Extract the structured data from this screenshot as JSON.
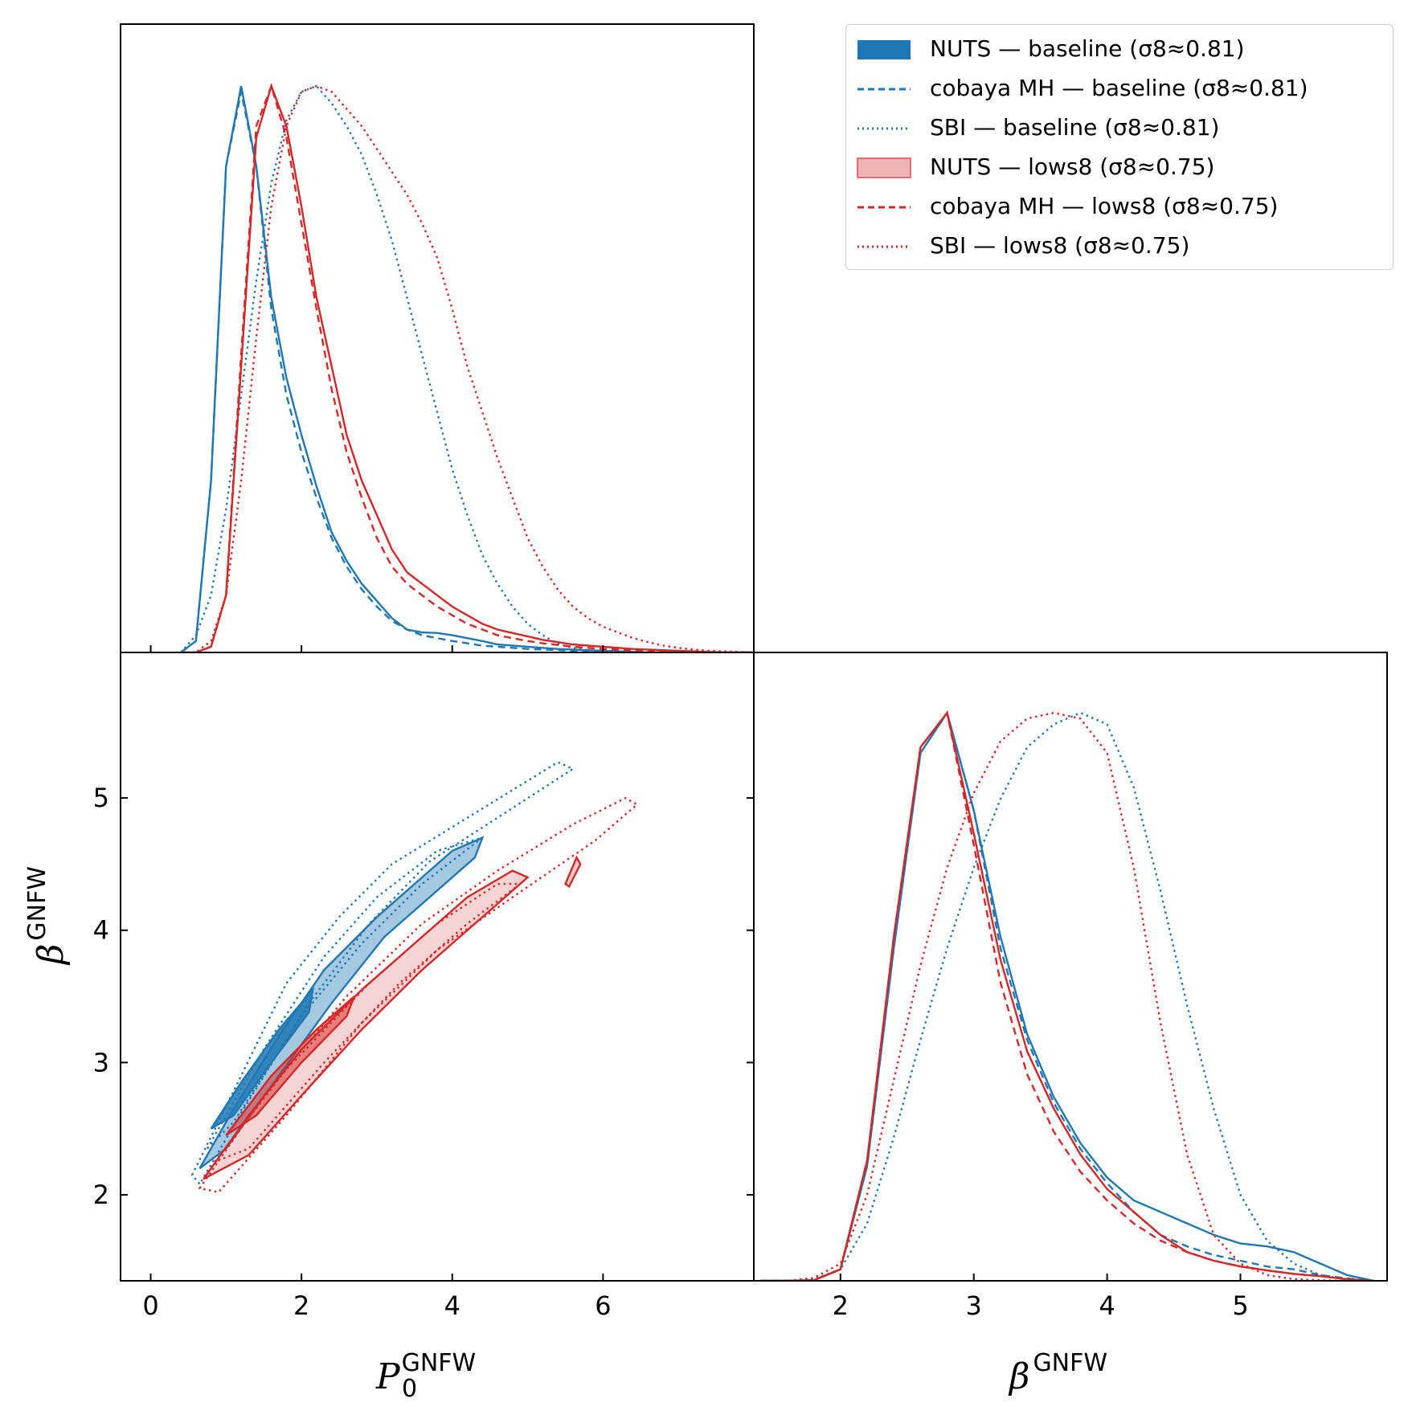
{
  "colors": {
    "baseline": "#1f77b4",
    "lows8": "#d62728"
  },
  "legend": {
    "placement": "top-right",
    "entries": [
      {
        "label": "NUTS — baseline (σ8≈0.81)",
        "color": "#1f77b4",
        "style": "filled"
      },
      {
        "label": "cobaya MH — baseline (σ8≈0.81)",
        "color": "#1f77b4",
        "style": "dashed"
      },
      {
        "label": "SBI — baseline (σ8≈0.81)",
        "color": "#1f77b4",
        "style": "dotted"
      },
      {
        "label": "NUTS — lows8 (σ8≈0.75)",
        "color": "#d62728",
        "style": "filled"
      },
      {
        "label": "cobaya MH — lows8 (σ8≈0.75)",
        "color": "#d62728",
        "style": "dashed"
      },
      {
        "label": "SBI — lows8 (σ8≈0.75)",
        "color": "#d62728",
        "style": "dotted"
      }
    ]
  },
  "chart_data": {
    "type": "corner",
    "parameters": [
      "P0",
      "beta"
    ],
    "xlabel_p0": {
      "base": "P",
      "sub": "0",
      "sup": "GNFW"
    },
    "xlabel_beta": {
      "base": "β",
      "sup": "GNFW"
    },
    "ylabel_beta": {
      "base": "β",
      "sup": "GNFW"
    },
    "p0_range": [
      -0.4,
      8.0
    ],
    "beta_range": [
      1.35,
      6.1
    ],
    "p0_ticks": [
      "0",
      "2",
      "4",
      "6"
    ],
    "beta_ticks": [
      "2",
      "3",
      "4",
      "5"
    ],
    "p0_marginal": {
      "x": [
        0.4,
        0.6,
        0.8,
        1.0,
        1.2,
        1.4,
        1.6,
        1.8,
        2.0,
        2.2,
        2.4,
        2.6,
        2.8,
        3.0,
        3.2,
        3.4,
        3.6,
        3.8,
        4.0,
        4.2,
        4.4,
        4.6,
        4.8,
        5.0,
        5.2,
        5.4,
        5.6,
        5.8,
        6.0,
        6.2,
        6.4,
        6.6,
        6.8,
        7.0,
        7.2,
        7.4,
        7.6,
        7.8,
        8.0
      ],
      "series": [
        {
          "name": "NUTS — baseline (σ8≈0.81)",
          "color": "#1f77b4",
          "dash": "solid",
          "y": [
            0.0,
            0.02,
            0.3,
            0.85,
            0.99,
            0.85,
            0.62,
            0.48,
            0.38,
            0.29,
            0.21,
            0.16,
            0.12,
            0.09,
            0.06,
            0.04,
            0.035,
            0.034,
            0.03,
            0.025,
            0.02,
            0.014,
            0.012,
            0.01,
            0.008,
            0.006,
            0.005,
            0.004,
            0.003,
            0.002,
            0.001,
            0.0,
            0.0,
            0.0,
            0.0,
            0.0,
            0.0,
            0.0,
            0.0
          ]
        },
        {
          "name": "cobaya MH — baseline (σ8≈0.81)",
          "color": "#1f77b4",
          "dash": "dashed",
          "y": [
            0.0,
            0.02,
            0.3,
            0.85,
            0.98,
            0.85,
            0.6,
            0.45,
            0.35,
            0.27,
            0.2,
            0.15,
            0.11,
            0.08,
            0.055,
            0.04,
            0.03,
            0.025,
            0.02,
            0.016,
            0.012,
            0.01,
            0.008,
            0.006,
            0.005,
            0.004,
            0.003,
            0.002,
            0.002,
            0.001,
            0.0,
            0.0,
            0.0,
            0.0,
            0.0,
            0.0,
            0.0,
            0.0,
            0.0
          ]
        },
        {
          "name": "SBI — baseline (σ8≈0.81)",
          "color": "#1f77b4",
          "dash": "dotted",
          "y": [
            0.0,
            0.03,
            0.1,
            0.25,
            0.45,
            0.65,
            0.82,
            0.93,
            0.98,
            0.99,
            0.96,
            0.92,
            0.87,
            0.8,
            0.72,
            0.62,
            0.52,
            0.42,
            0.32,
            0.24,
            0.17,
            0.12,
            0.08,
            0.05,
            0.03,
            0.015,
            0.008,
            0.004,
            0.002,
            0.001,
            0.0,
            0.0,
            0.0,
            0.0,
            0.0,
            0.0,
            0.0,
            0.0,
            0.0
          ]
        },
        {
          "name": "NUTS — lows8 (σ8≈0.75)",
          "color": "#d62728",
          "dash": "solid",
          "y": [
            0.0,
            0.0,
            0.01,
            0.1,
            0.5,
            0.9,
            0.99,
            0.92,
            0.78,
            0.62,
            0.5,
            0.38,
            0.3,
            0.24,
            0.18,
            0.14,
            0.12,
            0.1,
            0.08,
            0.065,
            0.05,
            0.04,
            0.034,
            0.028,
            0.022,
            0.018,
            0.014,
            0.012,
            0.01,
            0.008,
            0.006,
            0.005,
            0.004,
            0.003,
            0.002,
            0.001,
            0.0,
            0.0,
            0.0
          ]
        },
        {
          "name": "cobaya MH — lows8 (σ8≈0.75)",
          "color": "#d62728",
          "dash": "dashed",
          "y": [
            0.0,
            0.0,
            0.01,
            0.1,
            0.52,
            0.92,
            0.99,
            0.9,
            0.75,
            0.6,
            0.46,
            0.35,
            0.27,
            0.2,
            0.15,
            0.12,
            0.1,
            0.08,
            0.065,
            0.05,
            0.04,
            0.03,
            0.025,
            0.02,
            0.016,
            0.013,
            0.01,
            0.008,
            0.006,
            0.005,
            0.004,
            0.003,
            0.002,
            0.001,
            0.0,
            0.0,
            0.0,
            0.0,
            0.0
          ]
        },
        {
          "name": "SBI — lows8 (σ8≈0.75)",
          "color": "#d62728",
          "dash": "dotted",
          "y": [
            0.0,
            0.0,
            0.02,
            0.1,
            0.3,
            0.55,
            0.78,
            0.92,
            0.98,
            0.99,
            0.98,
            0.95,
            0.92,
            0.88,
            0.84,
            0.8,
            0.75,
            0.69,
            0.6,
            0.5,
            0.42,
            0.34,
            0.27,
            0.2,
            0.15,
            0.11,
            0.08,
            0.06,
            0.045,
            0.035,
            0.025,
            0.018,
            0.012,
            0.008,
            0.005,
            0.003,
            0.002,
            0.001,
            0.0
          ]
        }
      ]
    },
    "beta_marginal": {
      "x": [
        1.4,
        1.6,
        1.8,
        2.0,
        2.2,
        2.4,
        2.6,
        2.8,
        3.0,
        3.2,
        3.4,
        3.6,
        3.8,
        4.0,
        4.2,
        4.4,
        4.6,
        4.8,
        5.0,
        5.2,
        5.4,
        5.6,
        5.8,
        6.0
      ],
      "series": [
        {
          "name": "NUTS — baseline (σ8≈0.81)",
          "color": "#1f77b4",
          "dash": "solid",
          "y": [
            0.0,
            0.0,
            0.001,
            0.02,
            0.2,
            0.58,
            0.92,
            0.99,
            0.82,
            0.6,
            0.43,
            0.32,
            0.24,
            0.18,
            0.14,
            0.12,
            0.1,
            0.08,
            0.065,
            0.06,
            0.05,
            0.03,
            0.01,
            0.0
          ]
        },
        {
          "name": "cobaya MH — baseline (σ8≈0.81)",
          "color": "#1f77b4",
          "dash": "dashed",
          "y": [
            0.0,
            0.0,
            0.001,
            0.02,
            0.2,
            0.58,
            0.92,
            0.99,
            0.82,
            0.58,
            0.42,
            0.31,
            0.23,
            0.17,
            0.12,
            0.08,
            0.06,
            0.045,
            0.035,
            0.025,
            0.02,
            0.01,
            0.004,
            0.0
          ]
        },
        {
          "name": "SBI — baseline (σ8≈0.81)",
          "color": "#1f77b4",
          "dash": "dotted",
          "y": [
            0.0,
            0.0,
            0.003,
            0.02,
            0.1,
            0.25,
            0.42,
            0.58,
            0.72,
            0.84,
            0.93,
            0.97,
            0.99,
            0.97,
            0.86,
            0.68,
            0.48,
            0.3,
            0.15,
            0.07,
            0.03,
            0.01,
            0.002,
            0.0
          ]
        },
        {
          "name": "NUTS — lows8 (σ8≈0.75)",
          "color": "#d62728",
          "dash": "solid",
          "y": [
            0.0,
            0.0,
            0.001,
            0.02,
            0.21,
            0.6,
            0.93,
            0.99,
            0.78,
            0.56,
            0.4,
            0.3,
            0.22,
            0.16,
            0.12,
            0.08,
            0.05,
            0.035,
            0.025,
            0.018,
            0.012,
            0.008,
            0.003,
            0.0
          ]
        },
        {
          "name": "cobaya MH — lows8 (σ8≈0.75)",
          "color": "#d62728",
          "dash": "dashed",
          "y": [
            0.0,
            0.0,
            0.001,
            0.02,
            0.21,
            0.6,
            0.93,
            0.99,
            0.76,
            0.52,
            0.36,
            0.26,
            0.19,
            0.14,
            0.1,
            0.07,
            0.05,
            0.035,
            0.025,
            0.018,
            0.012,
            0.008,
            0.003,
            0.0
          ]
        },
        {
          "name": "SBI — lows8 (σ8≈0.75)",
          "color": "#d62728",
          "dash": "dotted",
          "y": [
            0.0,
            0.0,
            0.005,
            0.03,
            0.15,
            0.35,
            0.55,
            0.72,
            0.85,
            0.94,
            0.98,
            0.99,
            0.98,
            0.92,
            0.72,
            0.45,
            0.22,
            0.08,
            0.03,
            0.01,
            0.003,
            0.001,
            0.0,
            0.0
          ]
        }
      ]
    },
    "joint_contours": [
      {
        "name": "SBI — baseline (σ8≈0.81)",
        "color": "#1f77b4",
        "dash": "dotted",
        "fill": false,
        "points": [
          [
            0.55,
            2.15
          ],
          [
            1.2,
            2.9
          ],
          [
            1.8,
            3.6
          ],
          [
            2.5,
            4.1
          ],
          [
            3.2,
            4.5
          ],
          [
            4.2,
            4.85
          ],
          [
            5.4,
            5.27
          ],
          [
            5.6,
            5.22
          ],
          [
            4.6,
            4.85
          ],
          [
            3.7,
            4.52
          ],
          [
            2.9,
            4.05
          ],
          [
            2.1,
            3.45
          ],
          [
            1.2,
            2.62
          ],
          [
            0.65,
            2.08
          ]
        ]
      },
      {
        "name": "SBI — baseline (σ8≈0.81)",
        "color": "#1f77b4",
        "dash": "dotted",
        "fill": false,
        "points": [
          [
            0.75,
            2.35
          ],
          [
            1.5,
            3.1
          ],
          [
            2.3,
            3.8
          ],
          [
            3.0,
            4.25
          ],
          [
            3.8,
            4.6
          ],
          [
            4.4,
            4.7
          ],
          [
            3.6,
            4.35
          ],
          [
            2.8,
            3.9
          ],
          [
            2.0,
            3.35
          ],
          [
            1.1,
            2.55
          ]
        ]
      },
      {
        "name": "NUTS — baseline (σ8≈0.81)",
        "color": "#1f77b4",
        "dash": "solid",
        "fill": true,
        "opacity": 0.4,
        "points": [
          [
            0.65,
            2.2
          ],
          [
            1.1,
            2.65
          ],
          [
            1.7,
            3.2
          ],
          [
            2.3,
            3.7
          ],
          [
            3.0,
            4.1
          ],
          [
            3.6,
            4.4
          ],
          [
            4.0,
            4.6
          ],
          [
            4.4,
            4.7
          ],
          [
            4.3,
            4.55
          ],
          [
            3.8,
            4.3
          ],
          [
            3.1,
            3.95
          ],
          [
            2.4,
            3.45
          ],
          [
            1.7,
            2.9
          ],
          [
            1.0,
            2.35
          ]
        ]
      },
      {
        "name": "NUTS — baseline (σ8≈0.81)",
        "color": "#1f77b4",
        "dash": "solid",
        "fill": true,
        "opacity": 0.85,
        "points": [
          [
            0.8,
            2.5
          ],
          [
            1.2,
            2.85
          ],
          [
            1.7,
            3.25
          ],
          [
            2.15,
            3.55
          ],
          [
            2.1,
            3.38
          ],
          [
            1.6,
            3.0
          ],
          [
            1.1,
            2.6
          ]
        ]
      },
      {
        "name": "SBI — lows8 (σ8≈0.75)",
        "color": "#d62728",
        "dash": "dotted",
        "fill": false,
        "points": [
          [
            0.65,
            2.05
          ],
          [
            1.5,
            2.75
          ],
          [
            2.6,
            3.5
          ],
          [
            3.6,
            4.05
          ],
          [
            4.6,
            4.45
          ],
          [
            5.6,
            4.8
          ],
          [
            6.3,
            5.0
          ],
          [
            6.45,
            4.95
          ],
          [
            5.9,
            4.68
          ],
          [
            4.8,
            4.25
          ],
          [
            3.8,
            3.85
          ],
          [
            2.8,
            3.3
          ],
          [
            1.8,
            2.6
          ],
          [
            0.9,
            2.02
          ]
        ]
      },
      {
        "name": "SBI — lows8 (σ8≈0.75)",
        "color": "#d62728",
        "dash": "dotted",
        "fill": false,
        "points": [
          [
            0.85,
            2.25
          ],
          [
            1.8,
            2.95
          ],
          [
            2.9,
            3.6
          ],
          [
            3.8,
            4.05
          ],
          [
            4.6,
            4.35
          ],
          [
            4.9,
            4.35
          ],
          [
            4.2,
            4.05
          ],
          [
            3.3,
            3.6
          ],
          [
            2.3,
            3.0
          ],
          [
            1.3,
            2.35
          ]
        ]
      },
      {
        "name": "NUTS — lows8 (σ8≈0.75)",
        "color": "#d62728",
        "dash": "solid",
        "fill": true,
        "opacity": 0.2,
        "points": [
          [
            0.7,
            2.12
          ],
          [
            1.3,
            2.6
          ],
          [
            2.0,
            3.1
          ],
          [
            2.8,
            3.55
          ],
          [
            3.6,
            3.95
          ],
          [
            4.2,
            4.25
          ],
          [
            4.8,
            4.45
          ],
          [
            5.0,
            4.4
          ],
          [
            4.4,
            4.1
          ],
          [
            3.6,
            3.7
          ],
          [
            2.8,
            3.25
          ],
          [
            2.0,
            2.75
          ],
          [
            1.3,
            2.3
          ]
        ]
      },
      {
        "name": "NUTS — lows8 (σ8≈0.75)",
        "color": "#d62728",
        "dash": "solid",
        "fill": true,
        "opacity": 0.5,
        "points": [
          [
            1.0,
            2.45
          ],
          [
            1.6,
            2.9
          ],
          [
            2.2,
            3.25
          ],
          [
            2.7,
            3.5
          ],
          [
            2.6,
            3.35
          ],
          [
            2.0,
            3.0
          ],
          [
            1.4,
            2.6
          ]
        ]
      },
      {
        "name": "NUTS — lows8 (σ8≈0.75)",
        "color": "#d62728",
        "dash": "solid",
        "fill": true,
        "opacity": 0.25,
        "points": [
          [
            5.5,
            4.35
          ],
          [
            5.65,
            4.55
          ],
          [
            5.7,
            4.5
          ],
          [
            5.55,
            4.33
          ]
        ]
      }
    ]
  }
}
